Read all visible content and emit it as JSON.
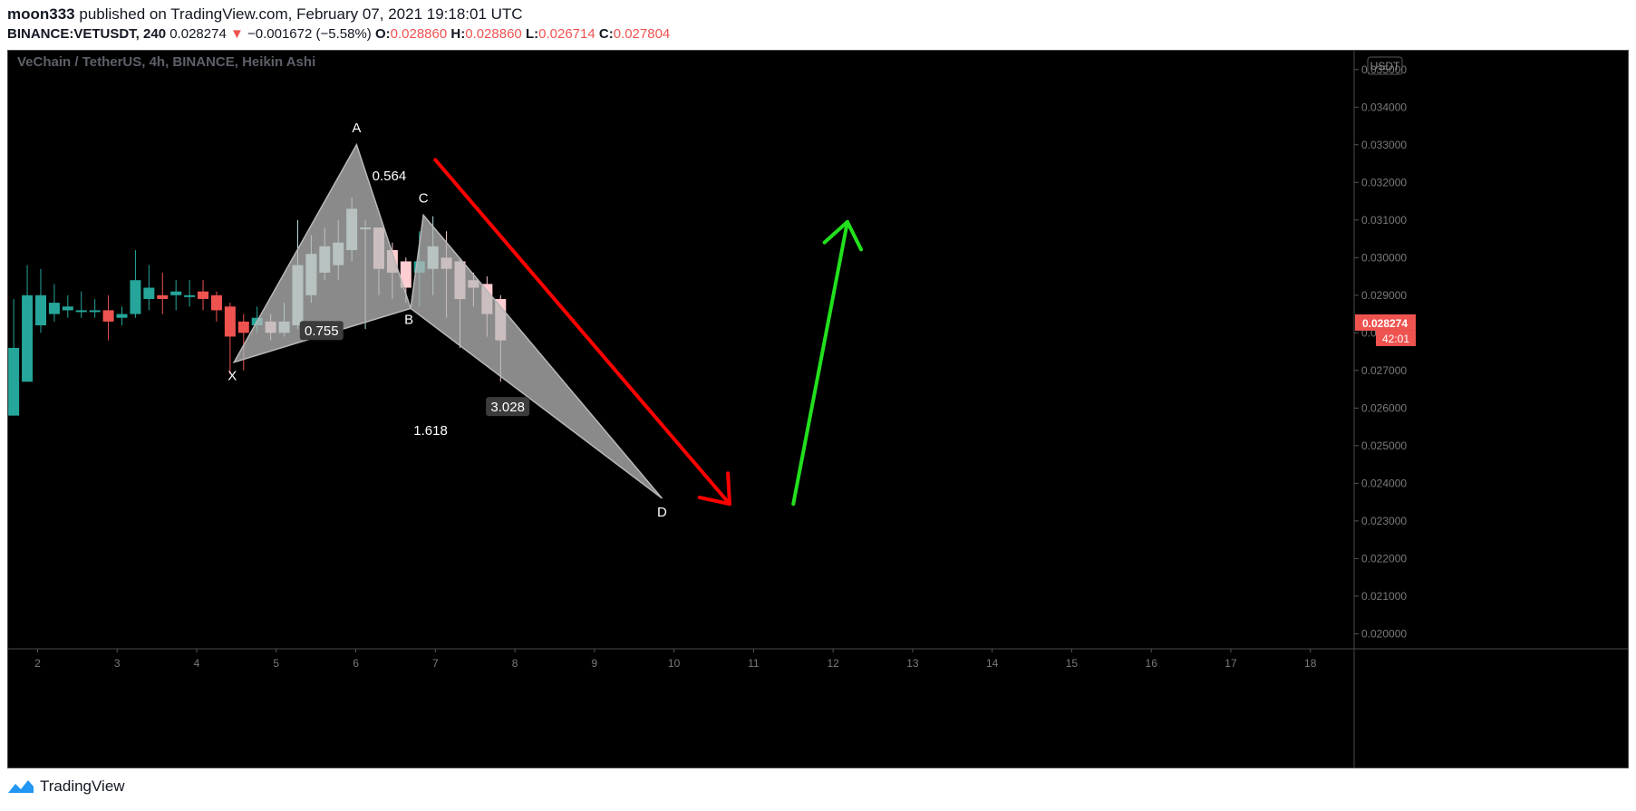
{
  "header": {
    "author": "moon333",
    "published_text": "published on TradingView.com, February 07, 2021 19:18:01 UTC",
    "symbol": "BINANCE:VETUSDT, 240",
    "last_price": "0.028274",
    "change_arrow": "▼",
    "change": "−0.001672 (−5.58%)",
    "o_label": "O:",
    "o_value": "0.028860",
    "h_label": "H:",
    "h_value": "0.028860",
    "l_label": "L:",
    "l_value": "0.026714",
    "c_label": "C:",
    "c_value": "0.027804"
  },
  "footer": {
    "brand": "TradingView"
  },
  "colors": {
    "background": "#000000",
    "up": "#26a69a",
    "down": "#ef5350",
    "up_faded": "#b2dfdb",
    "down_faded": "#ffcdd2",
    "pattern_fill": "#b8b8b8",
    "red_arrow": "#ff0000",
    "green_arrow": "#22e01d"
  },
  "chart_data": {
    "type": "candlestick",
    "title": "VeChain / TetherUS, 4h, BINANCE, Heikin Ashi",
    "currency_badge": "USDT",
    "y_ticks": [
      "0.035000",
      "0.034000",
      "0.033000",
      "0.032000",
      "0.031000",
      "0.030000",
      "0.029000",
      "0.028000",
      "0.027000",
      "0.026000",
      "0.025000",
      "0.024000",
      "0.023000",
      "0.022000",
      "0.021000",
      "0.020000"
    ],
    "ylim": [
      0.0196,
      0.0355
    ],
    "x_ticks": [
      "2",
      "3",
      "4",
      "5",
      "6",
      "7",
      "8",
      "9",
      "10",
      "11",
      "12",
      "13",
      "14",
      "15",
      "16",
      "17",
      "18"
    ],
    "xlim": [
      1.63,
      18.55
    ],
    "last_price_label": "0.028274",
    "countdown_label": "42:01",
    "candles": [
      {
        "t": 1.7,
        "o": 0.0258,
        "h": 0.0289,
        "l": 0.0258,
        "c": 0.0276,
        "style": "up"
      },
      {
        "t": 1.87,
        "o": 0.0267,
        "h": 0.0298,
        "l": 0.0267,
        "c": 0.029,
        "style": "up"
      },
      {
        "t": 2.04,
        "o": 0.0282,
        "h": 0.0297,
        "l": 0.028,
        "c": 0.029,
        "style": "up"
      },
      {
        "t": 2.21,
        "o": 0.0285,
        "h": 0.0293,
        "l": 0.0283,
        "c": 0.0288,
        "style": "up"
      },
      {
        "t": 2.38,
        "o": 0.0286,
        "h": 0.029,
        "l": 0.0284,
        "c": 0.0287,
        "style": "up"
      },
      {
        "t": 2.55,
        "o": 0.0286,
        "h": 0.0291,
        "l": 0.0284,
        "c": 0.0286,
        "style": "up"
      },
      {
        "t": 2.72,
        "o": 0.0286,
        "h": 0.0289,
        "l": 0.0284,
        "c": 0.0286,
        "style": "up"
      },
      {
        "t": 2.89,
        "o": 0.0286,
        "h": 0.029,
        "l": 0.0278,
        "c": 0.0283,
        "style": "down"
      },
      {
        "t": 3.06,
        "o": 0.0284,
        "h": 0.0287,
        "l": 0.0282,
        "c": 0.0285,
        "style": "up"
      },
      {
        "t": 3.23,
        "o": 0.0285,
        "h": 0.0302,
        "l": 0.0284,
        "c": 0.0294,
        "style": "up"
      },
      {
        "t": 3.4,
        "o": 0.0289,
        "h": 0.0298,
        "l": 0.0286,
        "c": 0.0292,
        "style": "up"
      },
      {
        "t": 3.57,
        "o": 0.029,
        "h": 0.0296,
        "l": 0.0285,
        "c": 0.0289,
        "style": "down"
      },
      {
        "t": 3.74,
        "o": 0.029,
        "h": 0.0294,
        "l": 0.0286,
        "c": 0.0291,
        "style": "up"
      },
      {
        "t": 3.91,
        "o": 0.029,
        "h": 0.0294,
        "l": 0.0287,
        "c": 0.029,
        "style": "up"
      },
      {
        "t": 4.08,
        "o": 0.0291,
        "h": 0.0294,
        "l": 0.0286,
        "c": 0.0289,
        "style": "down"
      },
      {
        "t": 4.25,
        "o": 0.029,
        "h": 0.0291,
        "l": 0.0283,
        "c": 0.0286,
        "style": "down"
      },
      {
        "t": 4.42,
        "o": 0.0287,
        "h": 0.0288,
        "l": 0.0269,
        "c": 0.0279,
        "style": "down"
      },
      {
        "t": 4.59,
        "o": 0.0283,
        "h": 0.0285,
        "l": 0.027,
        "c": 0.028,
        "style": "down"
      },
      {
        "t": 4.76,
        "o": 0.0282,
        "h": 0.0287,
        "l": 0.028,
        "c": 0.0284,
        "style": "up"
      },
      {
        "t": 4.93,
        "o": 0.0283,
        "h": 0.0285,
        "l": 0.0278,
        "c": 0.028,
        "style": "down_faded"
      },
      {
        "t": 5.1,
        "o": 0.028,
        "h": 0.0288,
        "l": 0.0279,
        "c": 0.0283,
        "style": "up_faded"
      },
      {
        "t": 5.27,
        "o": 0.0282,
        "h": 0.031,
        "l": 0.0281,
        "c": 0.0298,
        "style": "up_faded"
      },
      {
        "t": 5.44,
        "o": 0.029,
        "h": 0.0306,
        "l": 0.0288,
        "c": 0.0301,
        "style": "up_faded"
      },
      {
        "t": 5.61,
        "o": 0.0296,
        "h": 0.0308,
        "l": 0.0294,
        "c": 0.0303,
        "style": "up_faded"
      },
      {
        "t": 5.78,
        "o": 0.0298,
        "h": 0.031,
        "l": 0.0294,
        "c": 0.0304,
        "style": "up_faded"
      },
      {
        "t": 5.95,
        "o": 0.0302,
        "h": 0.0316,
        "l": 0.0299,
        "c": 0.0313,
        "style": "up_faded"
      },
      {
        "t": 6.12,
        "o": 0.0308,
        "h": 0.031,
        "l": 0.0281,
        "c": 0.0308,
        "style": "up_faded"
      },
      {
        "t": 6.29,
        "o": 0.0308,
        "h": 0.0308,
        "l": 0.029,
        "c": 0.0297,
        "style": "down_faded"
      },
      {
        "t": 6.46,
        "o": 0.0302,
        "h": 0.0304,
        "l": 0.0289,
        "c": 0.0296,
        "style": "down_faded"
      },
      {
        "t": 6.63,
        "o": 0.0299,
        "h": 0.03,
        "l": 0.0288,
        "c": 0.0292,
        "style": "down_faded"
      },
      {
        "t": 6.8,
        "o": 0.0296,
        "h": 0.0307,
        "l": 0.0287,
        "c": 0.0299,
        "style": "up"
      },
      {
        "t": 6.97,
        "o": 0.0297,
        "h": 0.0311,
        "l": 0.029,
        "c": 0.0303,
        "style": "up_faded"
      },
      {
        "t": 7.14,
        "o": 0.03,
        "h": 0.0307,
        "l": 0.0284,
        "c": 0.0297,
        "style": "down_faded"
      },
      {
        "t": 7.31,
        "o": 0.0299,
        "h": 0.03,
        "l": 0.0276,
        "c": 0.0289,
        "style": "down_faded"
      },
      {
        "t": 7.48,
        "o": 0.0294,
        "h": 0.0296,
        "l": 0.0287,
        "c": 0.0292,
        "style": "down_faded"
      },
      {
        "t": 7.65,
        "o": 0.0293,
        "h": 0.0295,
        "l": 0.0279,
        "c": 0.0285,
        "style": "down_faded"
      },
      {
        "t": 7.82,
        "o": 0.0289,
        "h": 0.029,
        "l": 0.0267,
        "c": 0.0278,
        "style": "down_faded"
      }
    ],
    "xabcd": {
      "points": [
        {
          "label": "X",
          "t": 4.47,
          "p": 0.02722
        },
        {
          "label": "A",
          "t": 6.01,
          "p": 0.033
        },
        {
          "label": "B",
          "t": 6.69,
          "p": 0.02865
        },
        {
          "label": "C",
          "t": 6.85,
          "p": 0.03113
        },
        {
          "label": "D",
          "t": 9.85,
          "p": 0.0236
        }
      ],
      "ratios": [
        {
          "label": "0.564",
          "t": 6.42,
          "p": 0.03217,
          "boxed": false
        },
        {
          "label": "0.755",
          "t": 5.57,
          "p": 0.02805,
          "boxed": true
        },
        {
          "label": "3.028",
          "t": 7.91,
          "p": 0.02603,
          "boxed": true
        },
        {
          "label": "1.618",
          "t": 6.94,
          "p": 0.0254,
          "boxed": false
        }
      ]
    },
    "arrows": [
      {
        "name": "red-down-arrow",
        "color": "red_arrow",
        "from": {
          "t": 7.0,
          "p": 0.0326
        },
        "to": {
          "t": 10.7,
          "p": 0.02345
        }
      },
      {
        "name": "green-up-arrow",
        "color": "green_arrow",
        "from": {
          "t": 11.5,
          "p": 0.02345
        },
        "to": {
          "t": 12.18,
          "p": 0.03095
        }
      }
    ]
  }
}
